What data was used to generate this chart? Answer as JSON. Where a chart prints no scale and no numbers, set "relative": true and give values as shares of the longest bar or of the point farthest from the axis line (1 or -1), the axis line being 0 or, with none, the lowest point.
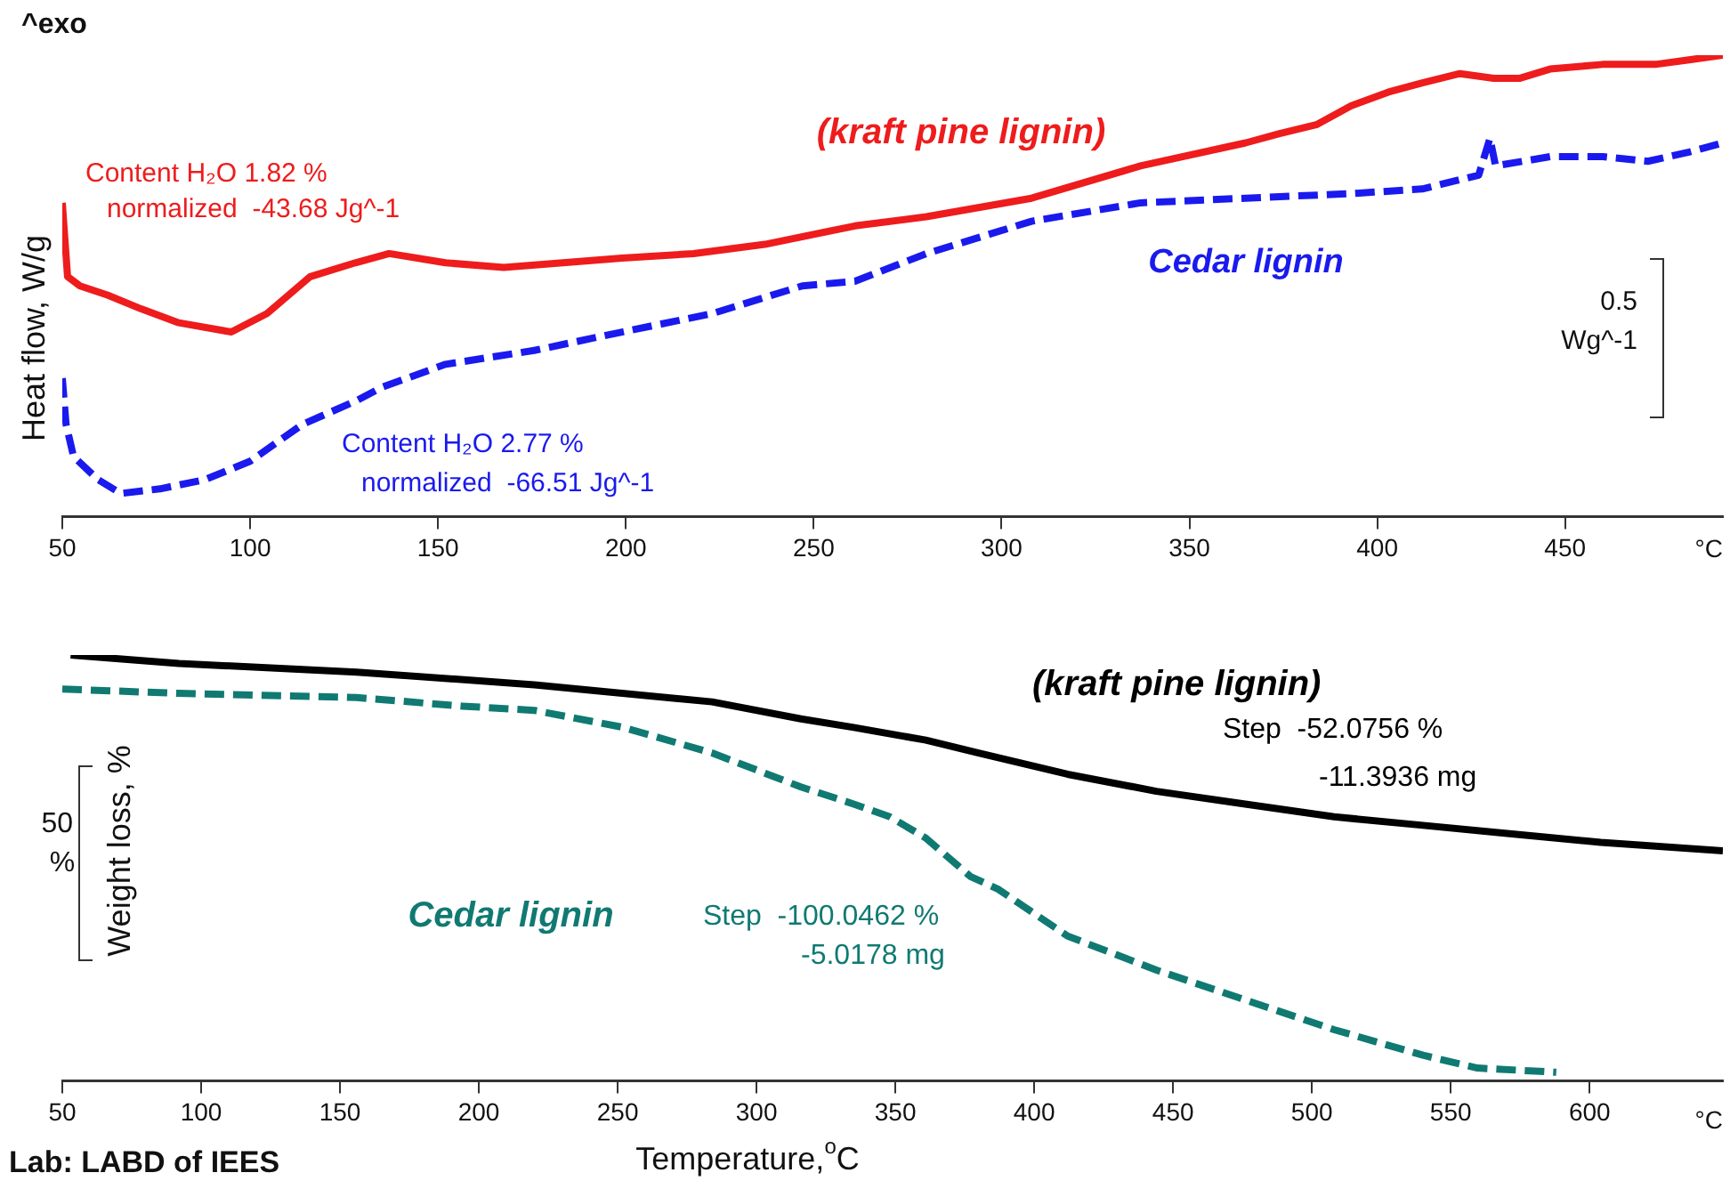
{
  "chart_data": [
    {
      "type": "line",
      "relative": true,
      "ylabel": "Heat flow, W/g",
      "xlim": [
        50,
        492
      ],
      "xticks": [
        50,
        100,
        150,
        200,
        250,
        300,
        350,
        400,
        450
      ],
      "marker": "none",
      "legend": false,
      "annotations": [
        "^exo",
        "Content H₂O 1.82 %",
        "normalized  -43.68 Jg^-1",
        "Content H₂O 2.77 %",
        "normalized  -66.51 Jg^-1",
        "0.5",
        "Wg^-1",
        "°C"
      ],
      "series": [
        {
          "name": "(kraft pine lignin)",
          "color": "#ee1c1c",
          "line_style": "solid",
          "x": [
            50,
            51.4,
            54.7,
            62,
            71,
            81,
            95,
            104.5,
            116,
            128,
            137,
            152,
            167.5,
            199,
            218,
            237,
            261,
            280,
            308,
            337,
            365,
            374,
            384,
            393,
            403,
            412,
            422,
            431,
            438,
            446,
            460,
            474,
            483,
            492
          ],
          "values": [
            0.68,
            0.52,
            0.5,
            0.48,
            0.45,
            0.42,
            0.4,
            0.44,
            0.52,
            0.55,
            0.57,
            0.55,
            0.54,
            0.56,
            0.57,
            0.59,
            0.63,
            0.65,
            0.69,
            0.76,
            0.81,
            0.83,
            0.85,
            0.89,
            0.92,
            0.94,
            0.96,
            0.95,
            0.95,
            0.97,
            0.98,
            0.98,
            0.99,
            1.0
          ]
        },
        {
          "name": "Cedar lignin",
          "color": "#1a1aee",
          "line_style": "dashed",
          "x": [
            50,
            51,
            53,
            59.5,
            65.6,
            76,
            88,
            100,
            114,
            128,
            135,
            152,
            175.6,
            199,
            223,
            247,
            261,
            280,
            308,
            337,
            365,
            393,
            412,
            427,
            430,
            431.5,
            446,
            460,
            472,
            483,
            492
          ],
          "values": [
            0.3,
            0.2,
            0.13,
            0.08,
            0.05,
            0.06,
            0.08,
            0.12,
            0.2,
            0.25,
            0.28,
            0.33,
            0.36,
            0.4,
            0.44,
            0.5,
            0.51,
            0.57,
            0.64,
            0.68,
            0.69,
            0.7,
            0.71,
            0.74,
            0.82,
            0.76,
            0.78,
            0.78,
            0.77,
            0.79,
            0.81
          ]
        }
      ]
    },
    {
      "type": "line",
      "relative": true,
      "xlabel": "Temperature,$^{o}$C",
      "ylabel": "Weight loss, %",
      "xlim": [
        50,
        648
      ],
      "xticks": [
        50,
        100,
        150,
        200,
        250,
        300,
        350,
        400,
        450,
        500,
        550,
        600
      ],
      "marker": "none",
      "legend": false,
      "annotations": [
        "Step  -52.0756 %",
        "-11.3936 mg",
        "Step  -100.0462 %",
        "-5.0178 mg",
        "50",
        "%",
        "°C",
        "Lab: LABD of IEES"
      ],
      "series": [
        {
          "name": "(kraft pine lignin)",
          "color": "#000000",
          "line_style": "solid",
          "x": [
            53,
            92,
            156,
            220,
            284,
            316,
            335,
            361,
            380,
            412,
            444,
            476,
            508,
            540,
            572,
            604,
            648
          ],
          "values": [
            1.0,
            0.98,
            0.96,
            0.93,
            0.89,
            0.85,
            0.83,
            0.8,
            0.77,
            0.72,
            0.68,
            0.65,
            0.62,
            0.6,
            0.58,
            0.56,
            0.54
          ]
        },
        {
          "name": "Cedar lignin",
          "color": "#107a72",
          "line_style": "dashed",
          "x": [
            50,
            92,
            156,
            194,
            220,
            252,
            284,
            316,
            335,
            348,
            361,
            377,
            387,
            412,
            444,
            476,
            508,
            540,
            559.6,
            588
          ],
          "values": [
            0.92,
            0.91,
            0.9,
            0.88,
            0.87,
            0.83,
            0.77,
            0.69,
            0.65,
            0.62,
            0.57,
            0.48,
            0.45,
            0.34,
            0.26,
            0.19,
            0.12,
            0.06,
            0.03,
            0.02
          ]
        }
      ]
    }
  ]
}
